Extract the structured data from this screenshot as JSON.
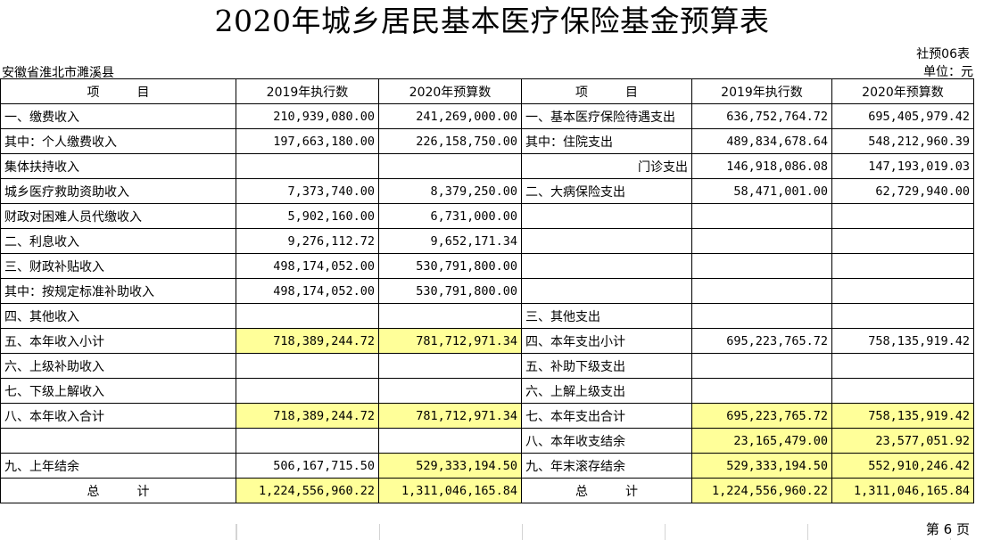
{
  "title": "2020年城乡居民基本医疗保险基金预算表",
  "form_no": "社预06表",
  "region": "安徽省淮北市濉溪县",
  "unit": "单位：元",
  "headers": {
    "item": "项　　　目",
    "exec2019": "2019年执行数",
    "budget2020": "2020年预算数"
  },
  "rows": [
    {
      "li": "一、缴费收入",
      "lv1": "210,939,080.00",
      "lv2": "241,269,000.00",
      "ri": "一、基本医疗保险待遇支出",
      "rv1": "636,752,764.72",
      "rv2": "695,405,979.42"
    },
    {
      "li": "其中：个人缴费收入",
      "lv1": "197,663,180.00",
      "lv2": "226,158,750.00",
      "ri": "其中：住院支出",
      "rv1": "489,834,678.64",
      "rv2": "548,212,960.39"
    },
    {
      "li": "集体扶持收入",
      "lv1": "",
      "lv2": "",
      "ri": "门诊支出",
      "rv1": "146,918,086.08",
      "rv2": "147,193,019.03"
    },
    {
      "li": "城乡医疗救助资助收入",
      "lv1": "7,373,740.00",
      "lv2": "8,379,250.00",
      "ri": "二、大病保险支出",
      "rv1": "58,471,001.00",
      "rv2": "62,729,940.00"
    },
    {
      "li": "财政对困难人员代缴收入",
      "lv1": "5,902,160.00",
      "lv2": "6,731,000.00",
      "ri": "",
      "rv1": "",
      "rv2": ""
    },
    {
      "li": "二、利息收入",
      "lv1": "9,276,112.72",
      "lv2": "9,652,171.34",
      "ri": "",
      "rv1": "",
      "rv2": ""
    },
    {
      "li": "三、财政补贴收入",
      "lv1": "498,174,052.00",
      "lv2": "530,791,800.00",
      "ri": "",
      "rv1": "",
      "rv2": ""
    },
    {
      "li": "其中：按规定标准补助收入",
      "lv1": "498,174,052.00",
      "lv2": "530,791,800.00",
      "ri": "",
      "rv1": "",
      "rv2": ""
    },
    {
      "li": "四、其他收入",
      "lv1": "",
      "lv2": "",
      "ri": "三、其他支出",
      "rv1": "",
      "rv2": ""
    },
    {
      "li": "五、本年收入小计",
      "lv1": "718,389,244.72",
      "lv2": "781,712,971.34",
      "ri": "四、本年支出小计",
      "rv1": "695,223,765.72",
      "rv2": "758,135,919.42"
    },
    {
      "li": "六、上级补助收入",
      "lv1": "",
      "lv2": "",
      "ri": "五、补助下级支出",
      "rv1": "",
      "rv2": ""
    },
    {
      "li": "七、下级上解收入",
      "lv1": "",
      "lv2": "",
      "ri": "六、上解上级支出",
      "rv1": "",
      "rv2": ""
    },
    {
      "li": "八、本年收入合计",
      "lv1": "718,389,244.72",
      "lv2": "781,712,971.34",
      "ri": "七、本年支出合计",
      "rv1": "695,223,765.72",
      "rv2": "758,135,919.42"
    },
    {
      "li": "",
      "lv1": "",
      "lv2": "",
      "ri": "八、本年收支结余",
      "rv1": "23,165,479.00",
      "rv2": "23,577,051.92"
    },
    {
      "li": "九、上年结余",
      "lv1": "506,167,715.50",
      "lv2": "529,333,194.50",
      "ri": "九、年末滚存结余",
      "rv1": "529,333,194.50",
      "rv2": "552,910,246.42"
    },
    {
      "li": "总　　　计",
      "lv1": "1,224,556,960.22",
      "lv2": "1,311,046,165.84",
      "ri": "总　　　计",
      "rv1": "1,224,556,960.22",
      "rv2": "1,311,046,165.84"
    }
  ],
  "page_label": "第 6 页",
  "colors": {
    "highlight": "#ffff99",
    "border": "#000000"
  }
}
